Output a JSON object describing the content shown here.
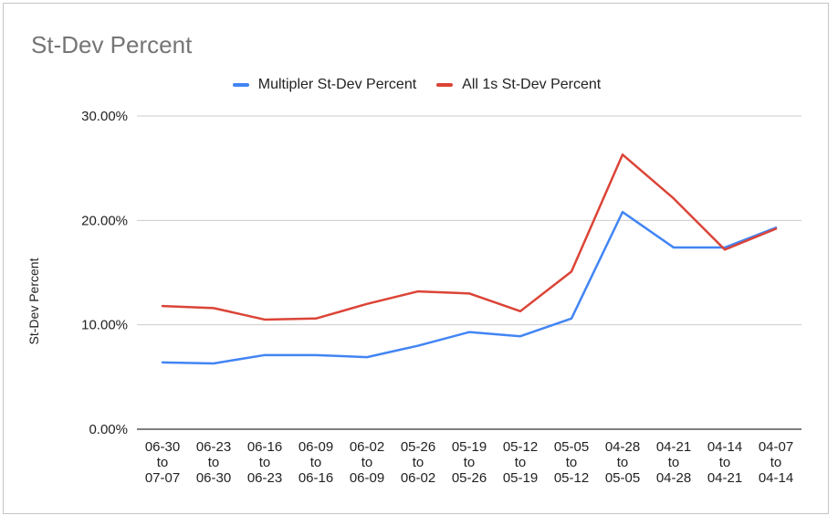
{
  "chart_data": {
    "type": "line",
    "title": "St-Dev Percent",
    "ylabel": "St-Dev Percent",
    "xlabel": "",
    "ylim": [
      0,
      30
    ],
    "yticks": [
      "0.00%",
      "10.00%",
      "20.00%",
      "30.00%"
    ],
    "ytick_values": [
      0,
      10,
      20,
      30
    ],
    "grid": true,
    "legend_position": "top",
    "categories": [
      [
        "06-30",
        "to",
        "07-07"
      ],
      [
        "06-23",
        "to",
        "06-30"
      ],
      [
        "06-16",
        "to",
        "06-23"
      ],
      [
        "06-09",
        "to",
        "06-16"
      ],
      [
        "06-02",
        "to",
        "06-09"
      ],
      [
        "05-26",
        "to",
        "06-02"
      ],
      [
        "05-19",
        "to",
        "05-26"
      ],
      [
        "05-12",
        "to",
        "05-19"
      ],
      [
        "05-05",
        "to",
        "05-12"
      ],
      [
        "04-28",
        "to",
        "05-05"
      ],
      [
        "04-21",
        "to",
        "04-28"
      ],
      [
        "04-14",
        "to",
        "04-21"
      ],
      [
        "04-07",
        "to",
        "04-14"
      ]
    ],
    "series": [
      {
        "name": "Multipler St-Dev Percent",
        "color": "#4285f4",
        "values": [
          6.4,
          6.3,
          7.1,
          7.1,
          6.9,
          8.0,
          9.3,
          8.9,
          10.6,
          20.8,
          17.4,
          17.4,
          19.3
        ]
      },
      {
        "name": "All 1s St-Dev Percent",
        "color": "#db4437",
        "values": [
          11.8,
          11.6,
          10.5,
          10.6,
          12.0,
          13.2,
          13.0,
          11.3,
          15.1,
          26.3,
          22.1,
          17.2,
          19.2
        ]
      }
    ]
  }
}
